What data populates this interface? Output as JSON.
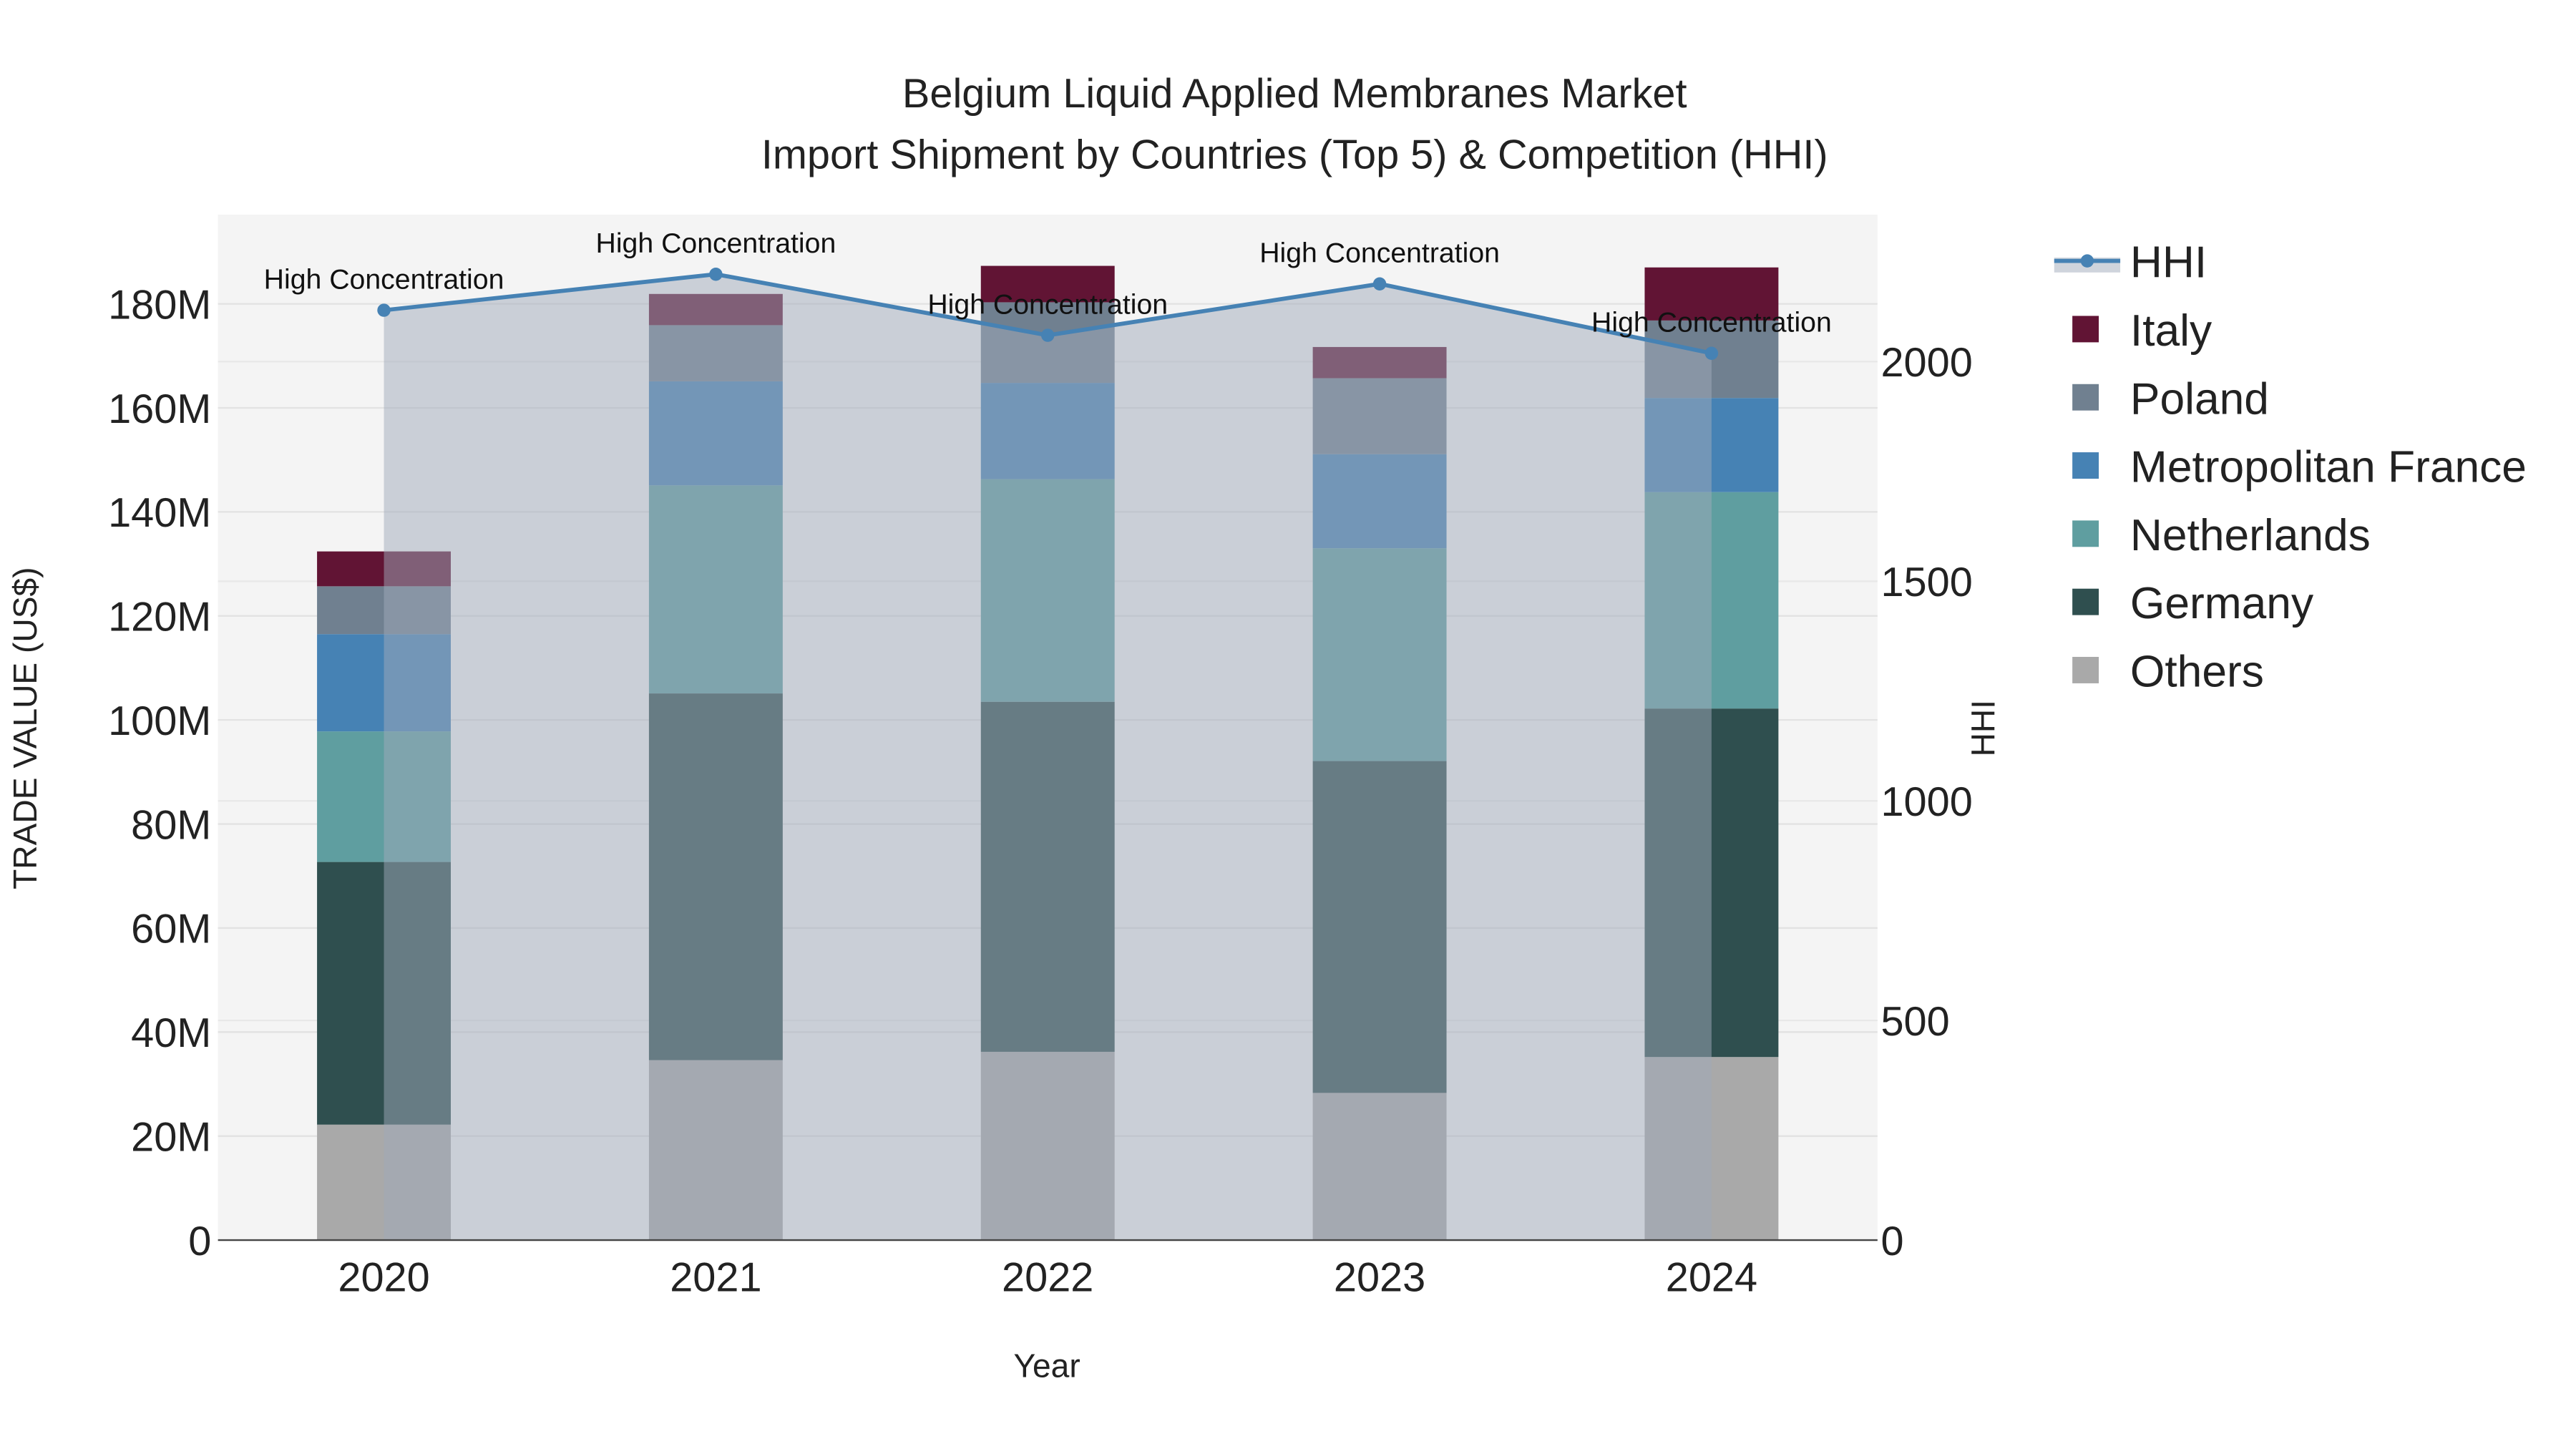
{
  "chart_data": {
    "type": "bar",
    "title_line1": "Belgium Liquid Applied Membranes Market",
    "title_line2": "Import Shipment by Countries (Top 5) & Competition (HHI)",
    "xlabel": "Year",
    "ylabel": "TRADE VALUE (US$)",
    "y2label": "HHI",
    "categories": [
      "2020",
      "2021",
      "2022",
      "2023",
      "2024"
    ],
    "ylim": [
      0,
      196000000
    ],
    "y2lim": [
      0,
      2330
    ],
    "yticks": [
      0,
      20000000,
      40000000,
      60000000,
      80000000,
      100000000,
      120000000,
      140000000,
      160000000,
      180000000
    ],
    "ytick_labels": [
      "0",
      "20M",
      "40M",
      "60M",
      "80M",
      "100M",
      "120M",
      "140M",
      "160M",
      "180M"
    ],
    "y2ticks": [
      0,
      500,
      1000,
      1500,
      2000
    ],
    "y2tick_labels": [
      "0",
      "500",
      "1000",
      "1500",
      "2000"
    ],
    "grid": true,
    "legend_position": "right",
    "stacked": true,
    "series": [
      {
        "name": "Others",
        "color": "#a9a9a9",
        "values": [
          22200000,
          34600000,
          36200000,
          28300000,
          35200000
        ]
      },
      {
        "name": "Germany",
        "color": "#2f4f4f",
        "values": [
          50500000,
          70500000,
          67300000,
          63800000,
          67000000
        ]
      },
      {
        "name": "Netherlands",
        "color": "#5f9ea0",
        "values": [
          25100000,
          40000000,
          42800000,
          40900000,
          41600000
        ]
      },
      {
        "name": "Metropolitan France",
        "color": "#4682b4",
        "values": [
          18700000,
          20000000,
          18500000,
          18100000,
          18100000
        ]
      },
      {
        "name": "Poland",
        "color": "#708090",
        "values": [
          9200000,
          10800000,
          15500000,
          14600000,
          14900000
        ]
      },
      {
        "name": "Italy",
        "color": "#611434",
        "values": [
          6700000,
          6000000,
          7000000,
          6000000,
          10200000
        ]
      }
    ],
    "line_series": {
      "name": "HHI",
      "color": "#4682b4",
      "values": [
        2117,
        2199,
        2060,
        2177,
        2019
      ],
      "annotations": [
        "High Concentration",
        "High Concentration",
        "High Concentration",
        "High Concentration",
        "High Concentration"
      ]
    },
    "legend_order": [
      "HHI",
      "Italy",
      "Poland",
      "Metropolitan France",
      "Netherlands",
      "Germany",
      "Others"
    ]
  }
}
